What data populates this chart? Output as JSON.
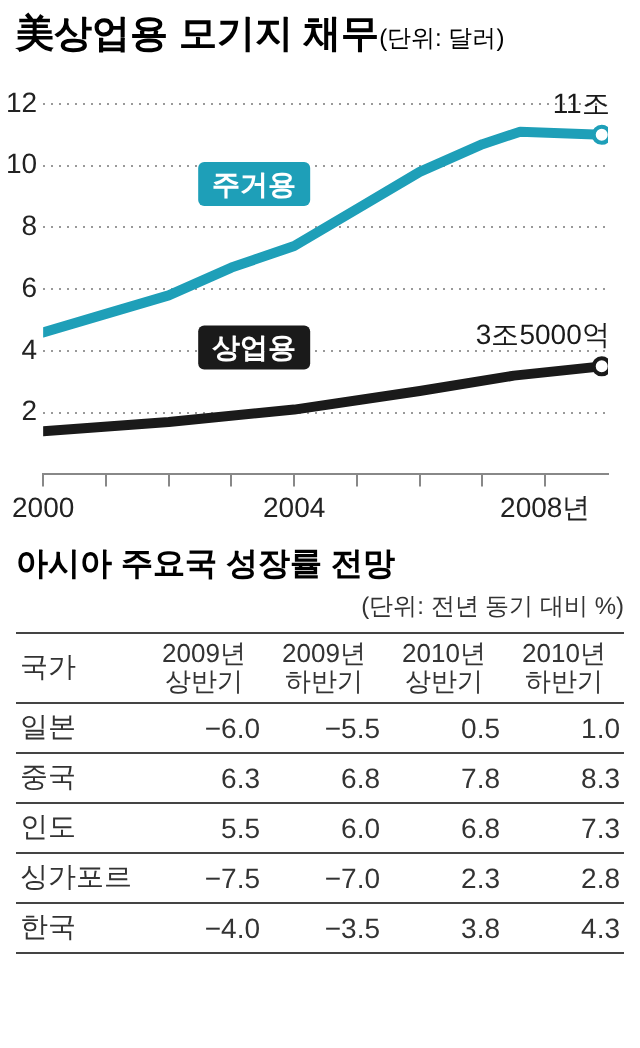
{
  "chart_data": [
    {
      "type": "line",
      "title": "美상업용 모기지 채무",
      "subtitle": "(단위: 달러)",
      "series": [
        {
          "name": "주거용",
          "color": "#1e9fb8",
          "x": [
            2000,
            2001,
            2002,
            2003,
            2004,
            2005,
            2006,
            2007,
            2007.6,
            2008.9
          ],
          "values": [
            4.6,
            5.2,
            5.8,
            6.7,
            7.4,
            8.6,
            9.8,
            10.7,
            11.1,
            11.0
          ]
        },
        {
          "name": "상업용",
          "color": "#1a1a1a",
          "x": [
            2000,
            2002,
            2004,
            2006,
            2007.5,
            2008.9
          ],
          "values": [
            1.4,
            1.7,
            2.1,
            2.7,
            3.2,
            3.5
          ]
        }
      ],
      "annotations": [
        {
          "text": "11조",
          "x": 2008.9,
          "y": 11.0
        },
        {
          "text": "3조5000억",
          "x": 2008.9,
          "y": 3.5
        }
      ],
      "xlim": [
        2000,
        2009
      ],
      "xticks": [
        2000,
        {
          "value": 2001,
          "label": null
        },
        {
          "value": 2002,
          "label": null
        },
        {
          "value": 2003,
          "label": null
        },
        2004,
        {
          "value": 2005,
          "label": null
        },
        {
          "value": 2006,
          "label": null
        },
        {
          "value": 2007,
          "label": null
        },
        {
          "value": 2008,
          "label": "2008년"
        }
      ],
      "ylim": [
        0,
        12
      ],
      "yticks": [
        2,
        4,
        6,
        8,
        10,
        12
      ],
      "grid": "y",
      "line_style": "solid",
      "legend": false
    },
    {
      "type": "other",
      "title": "아시아 주요국 성장률 전망",
      "subtitle": "(단위: 전년 동기 대비 %)",
      "xlabel": "국가",
      "categories": [
        "일본",
        "중국",
        "인도",
        "싱가포르",
        "한국"
      ],
      "series": [
        {
          "name": "2009년 상반기",
          "values": [
            -6.0,
            6.3,
            5.5,
            -7.5,
            -4.0
          ],
          "value_labels": [
            "−6.0",
            "6.3",
            "5.5",
            "−7.5",
            "−4.0"
          ]
        },
        {
          "name": "2009년 하반기",
          "values": [
            -5.5,
            6.8,
            6.0,
            -7.0,
            -3.5
          ],
          "value_labels": [
            "−5.5",
            "6.8",
            "6.0",
            "−7.0",
            "−3.5"
          ]
        },
        {
          "name": "2010년 상반기",
          "values": [
            0.5,
            7.8,
            6.8,
            2.3,
            3.8
          ],
          "value_labels": [
            "0.5",
            "7.8",
            "6.8",
            "2.3",
            "3.8"
          ]
        },
        {
          "name": "2010년 하반기",
          "values": [
            1.0,
            8.3,
            7.3,
            2.8,
            4.3
          ],
          "value_labels": [
            "1.0",
            "8.3",
            "7.3",
            "2.8",
            "4.3"
          ]
        }
      ]
    }
  ]
}
